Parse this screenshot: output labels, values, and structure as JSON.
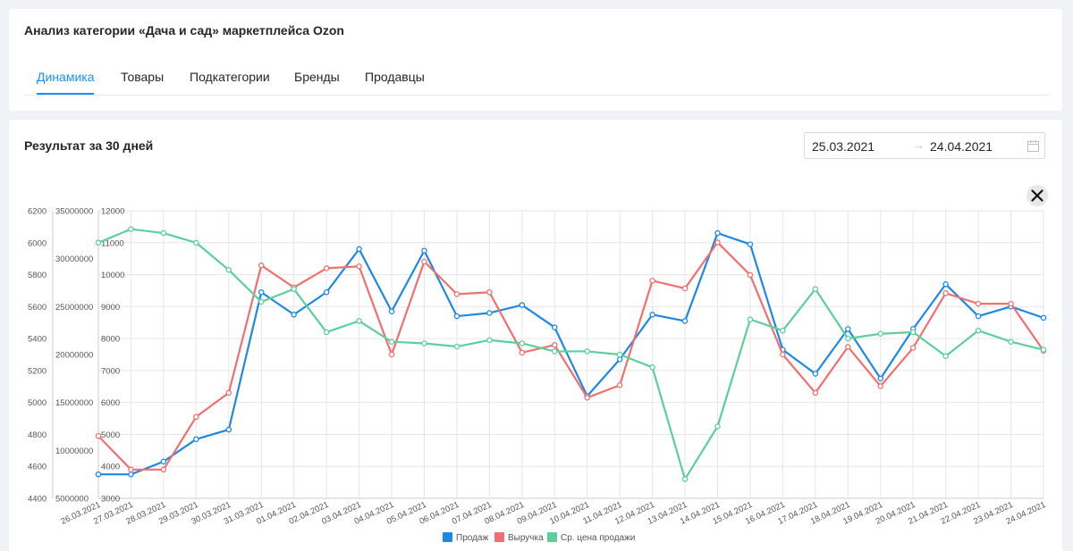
{
  "header": {
    "title": "Анализ категории «Дача и сад» маркетплейса Ozon",
    "tabs": [
      {
        "label": "Динамика",
        "active": true
      },
      {
        "label": "Товары",
        "active": false
      },
      {
        "label": "Подкатегории",
        "active": false
      },
      {
        "label": "Бренды",
        "active": false
      },
      {
        "label": "Продавцы",
        "active": false
      }
    ]
  },
  "section": {
    "title": "Результат за 30 дней",
    "date_from": "25.03.2021",
    "date_to": "24.04.2021",
    "range_separator": "→",
    "close_icon": "close-icon",
    "calendar_icon": "calendar-icon"
  },
  "colors": {
    "sales": "#1e88e5",
    "revenue": "#f07070",
    "avg_price": "#5ccf9b",
    "accent": "#1890ff"
  },
  "chart_data": {
    "type": "line",
    "categories": [
      "26.03.2021",
      "27.03.2021",
      "28.03.2021",
      "29.03.2021",
      "30.03.2021",
      "31.03.2021",
      "01.04.2021",
      "02.04.2021",
      "03.04.2021",
      "04.04.2021",
      "05.04.2021",
      "06.04.2021",
      "07.04.2021",
      "08.04.2021",
      "09.04.2021",
      "10.04.2021",
      "11.04.2021",
      "12.04.2021",
      "13.04.2021",
      "14.04.2021",
      "15.04.2021",
      "16.04.2021",
      "17.04.2021",
      "18.04.2021",
      "19.04.2021",
      "20.04.2021",
      "21.04.2021",
      "22.04.2021",
      "23.04.2021",
      "24.04.2021"
    ],
    "axes": [
      {
        "id": "price",
        "ylim": [
          4400,
          6200
        ],
        "ticks": [
          "6200",
          "6000",
          "5800",
          "5600",
          "5400",
          "5200",
          "5000",
          "4800",
          "4600",
          "4400"
        ]
      },
      {
        "id": "revenue",
        "ylim": [
          5000000,
          35000000
        ],
        "ticks": [
          "35000000",
          "30000000",
          "25000000",
          "20000000",
          "15000000",
          "10000000",
          "5000000"
        ]
      },
      {
        "id": "sales",
        "ylim": [
          3000,
          12000
        ],
        "ticks": [
          "12000",
          "11000",
          "10000",
          "9000",
          "8000",
          "7000",
          "6000",
          "5000",
          "4000",
          "3000"
        ]
      }
    ],
    "series": [
      {
        "name": "Продаж",
        "axis": "sales",
        "color": "#1e88e5",
        "values": [
          3750,
          3750,
          4150,
          4850,
          5150,
          9450,
          8750,
          9450,
          10800,
          8850,
          10750,
          8700,
          8800,
          9050,
          8350,
          6200,
          7350,
          8750,
          8550,
          11300,
          10950,
          7650,
          6900,
          8300,
          6750,
          8300,
          9700,
          8700,
          9000,
          8650
        ]
      },
      {
        "name": "Выручка",
        "axis": "revenue",
        "color": "#f07070",
        "values": [
          11500000,
          8000000,
          8000000,
          13500000,
          16000000,
          29300000,
          27000000,
          29000000,
          29200000,
          20000000,
          29700000,
          26300000,
          26500000,
          20200000,
          21000000,
          15500000,
          16800000,
          27700000,
          26900000,
          31700000,
          28300000,
          20000000,
          16000000,
          20800000,
          16700000,
          20700000,
          26400000,
          25300000,
          25300000,
          20400000
        ]
      },
      {
        "name": "Ср. цена продажи",
        "axis": "price",
        "color": "#5ccf9b",
        "values": [
          6000,
          6085,
          6060,
          6000,
          5830,
          5630,
          5710,
          5440,
          5510,
          5380,
          5370,
          5350,
          5390,
          5370,
          5320,
          5320,
          5300,
          5220,
          4520,
          4850,
          5520,
          5450,
          5710,
          5400,
          5430,
          5440,
          5290,
          5450,
          5380,
          5330
        ]
      }
    ],
    "legend": [
      "Продаж",
      "Выручка",
      "Ср. цена продажи"
    ],
    "legend_position": "bottom",
    "grid": true
  }
}
